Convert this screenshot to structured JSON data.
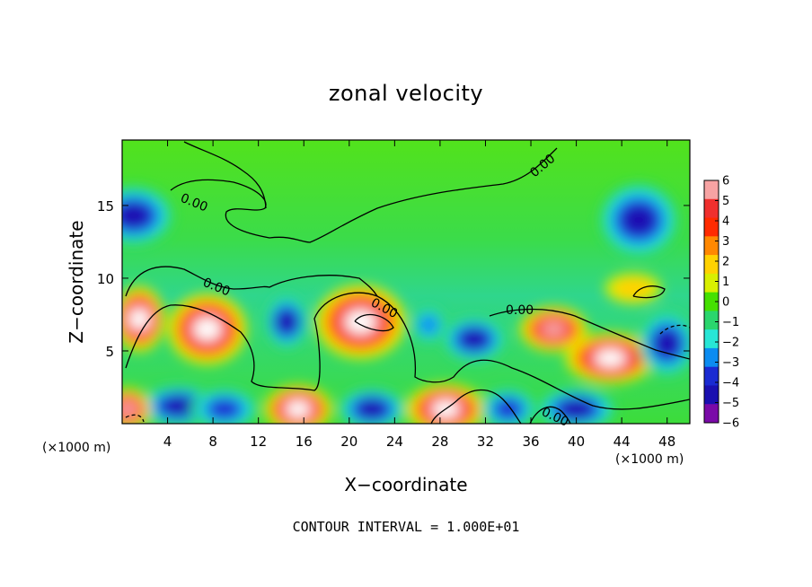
{
  "chart_data": {
    "type": "heatmap",
    "title": "zonal velocity",
    "xlabel": "X−coordinate",
    "ylabel": "Z−coordinate",
    "x_multiplier_label": "(×1000 m)",
    "x_multiplier_label_right": "(×1000 m)",
    "x_ticks": [
      4,
      8,
      12,
      16,
      20,
      24,
      28,
      32,
      36,
      40,
      44,
      48
    ],
    "y_ticks": [
      5,
      10,
      15
    ],
    "xlim": [
      0,
      50
    ],
    "ylim": [
      0,
      19.5
    ],
    "colorbar": {
      "ticks": [
        "6",
        "5",
        "4",
        "3",
        "2",
        "1",
        "0",
        "−1",
        "−2",
        "−3",
        "−4",
        "−5",
        "−6"
      ],
      "range": [
        -6,
        6
      ],
      "colors": [
        "#f7a3a3",
        "#f0302e",
        "#ff2b00",
        "#ff8800",
        "#ffd200",
        "#d8ef00",
        "#45e000",
        "#2ad66d",
        "#27e6d6",
        "#0b8cf1",
        "#1a2bd2",
        "#1a10b0",
        "#7a0aa8"
      ]
    },
    "contour_labels": [
      "0.00",
      "0.00",
      "0.00",
      "0.00",
      "0.00",
      "0.00"
    ],
    "contour_interval_note": "CONTOUR INTERVAL = 1.000E+01",
    "anomalies": [
      {
        "x": 1.5,
        "z": 7.2,
        "value": 7,
        "rx": 1.8,
        "rz": 2.0
      },
      {
        "x": 7.5,
        "z": 6.5,
        "value": 7,
        "rx": 3.0,
        "rz": 2.2
      },
      {
        "x": 14.5,
        "z": 7.0,
        "value": -5,
        "rx": 1.4,
        "rz": 1.6
      },
      {
        "x": 21.0,
        "z": 7.0,
        "value": 7,
        "rx": 3.5,
        "rz": 2.3
      },
      {
        "x": 31.0,
        "z": 5.8,
        "value": -5,
        "rx": 2.3,
        "rz": 1.3
      },
      {
        "x": 38.0,
        "z": 6.5,
        "value": 6,
        "rx": 2.5,
        "rz": 1.3
      },
      {
        "x": 43.0,
        "z": 4.5,
        "value": 7,
        "rx": 3.5,
        "rz": 1.5
      },
      {
        "x": 48.0,
        "z": 5.5,
        "value": -5,
        "rx": 2.0,
        "rz": 2.0
      },
      {
        "x": 1.0,
        "z": 14.3,
        "value": -5,
        "rx": 3.0,
        "rz": 1.8
      },
      {
        "x": 45.5,
        "z": 14.0,
        "value": -5,
        "rx": 3.0,
        "rz": 2.3
      },
      {
        "x": 5.0,
        "z": 1.2,
        "value": -5,
        "rx": 3.0,
        "rz": 1.2
      },
      {
        "x": 9.0,
        "z": 1.0,
        "value": -4,
        "rx": 2.5,
        "rz": 1.2
      },
      {
        "x": 15.5,
        "z": 1.0,
        "value": 7,
        "rx": 2.5,
        "rz": 1.4
      },
      {
        "x": 22.0,
        "z": 1.0,
        "value": -5,
        "rx": 2.5,
        "rz": 1.2
      },
      {
        "x": 28.5,
        "z": 1.0,
        "value": 7,
        "rx": 3.0,
        "rz": 1.5
      },
      {
        "x": 34.0,
        "z": 1.0,
        "value": -4,
        "rx": 2.0,
        "rz": 1.2
      },
      {
        "x": 40.0,
        "z": 1.0,
        "value": -5,
        "rx": 3.0,
        "rz": 1.2
      },
      {
        "x": 0.5,
        "z": 1.0,
        "value": 6,
        "rx": 1.5,
        "rz": 1.2
      },
      {
        "x": 27.0,
        "z": 6.8,
        "value": -3,
        "rx": 1.0,
        "rz": 1.0
      },
      {
        "x": 45.0,
        "z": 9.3,
        "value": 1.5,
        "rx": 2.0,
        "rz": 0.8
      }
    ]
  }
}
